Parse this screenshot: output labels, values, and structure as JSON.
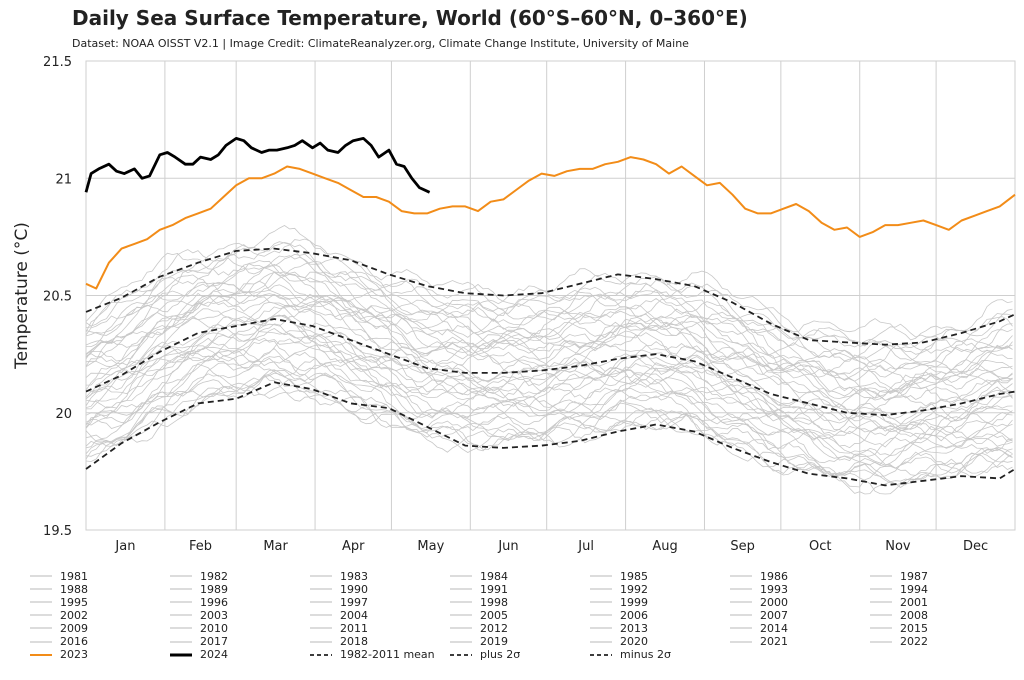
{
  "chart_data": {
    "type": "line",
    "title": "Daily Sea Surface Temperature, World (60°S–60°N, 0–360°E)",
    "subtitle": "Dataset: NOAA OISST V2.1 | Image Credit: ClimateReanalyzer.org, Climate Change Institute, University of Maine",
    "ylabel": "Temperature (°C)",
    "xlabel": "",
    "ylim": [
      19.5,
      21.5
    ],
    "yticks": [
      "21.5",
      "21",
      "20.5",
      "20",
      "19.5"
    ],
    "ytick_values": [
      21.5,
      21.0,
      20.5,
      20.0,
      19.5
    ],
    "xlim": [
      1,
      366
    ],
    "months": [
      "Jan",
      "Feb",
      "Mar",
      "Apr",
      "May",
      "Jun",
      "Jul",
      "Aug",
      "Sep",
      "Oct",
      "Nov",
      "Dec"
    ],
    "grid": true,
    "legend_position": "bottom",
    "colors": {
      "grey": "#c8c8c8",
      "y2023": "#f28c18",
      "y2024": "#000000",
      "stats": "#222222",
      "grid": "#cfcfcf"
    },
    "background_years": [
      "1981",
      "1982",
      "1983",
      "1984",
      "1985",
      "1986",
      "1987",
      "1988",
      "1989",
      "1990",
      "1991",
      "1992",
      "1993",
      "1994",
      "1995",
      "1996",
      "1997",
      "1998",
      "1999",
      "2000",
      "2001",
      "2002",
      "2003",
      "2004",
      "2005",
      "2006",
      "2007",
      "2008",
      "2009",
      "2010",
      "2011",
      "2012",
      "2013",
      "2014",
      "2015",
      "2016",
      "2017",
      "2018",
      "2019",
      "2020",
      "2021",
      "2022"
    ],
    "legend": [
      "1981",
      "1982",
      "1983",
      "1984",
      "1985",
      "1986",
      "1987",
      "1988",
      "1989",
      "1990",
      "1991",
      "1992",
      "1993",
      "1994",
      "1995",
      "1996",
      "1997",
      "1998",
      "1999",
      "2000",
      "2001",
      "2002",
      "2003",
      "2004",
      "2005",
      "2006",
      "2007",
      "2008",
      "2009",
      "2010",
      "2011",
      "2012",
      "2013",
      "2014",
      "2015",
      "2016",
      "2017",
      "2018",
      "2019",
      "2020",
      "2021",
      "2022",
      "2023",
      "2024",
      "1982-2011 mean",
      "plus 2σ",
      "minus 2σ"
    ],
    "series": [
      {
        "name": "1982-2011 mean",
        "style": "dashed",
        "x": [
          1,
          15,
          30,
          45,
          60,
          75,
          90,
          105,
          120,
          135,
          150,
          165,
          180,
          195,
          210,
          225,
          240,
          255,
          270,
          285,
          300,
          315,
          330,
          345,
          360,
          366
        ],
        "values": [
          20.09,
          20.16,
          20.26,
          20.34,
          20.37,
          20.4,
          20.37,
          20.31,
          20.25,
          20.19,
          20.17,
          20.17,
          20.18,
          20.2,
          20.23,
          20.25,
          20.22,
          20.15,
          20.08,
          20.04,
          20.0,
          19.99,
          20.01,
          20.04,
          20.08,
          20.09
        ]
      },
      {
        "name": "plus 2σ",
        "style": "dashed",
        "x": [
          1,
          15,
          30,
          45,
          60,
          75,
          90,
          105,
          120,
          135,
          150,
          165,
          180,
          195,
          210,
          225,
          240,
          255,
          270,
          285,
          300,
          315,
          330,
          345,
          360,
          366
        ],
        "values": [
          20.43,
          20.49,
          20.58,
          20.64,
          20.69,
          20.7,
          20.68,
          20.65,
          20.59,
          20.54,
          20.51,
          20.5,
          20.51,
          20.55,
          20.59,
          20.57,
          20.54,
          20.47,
          20.38,
          20.31,
          20.3,
          20.29,
          20.3,
          20.34,
          20.39,
          20.42
        ]
      },
      {
        "name": "minus 2σ",
        "style": "dashed",
        "x": [
          1,
          15,
          30,
          45,
          60,
          75,
          90,
          105,
          120,
          135,
          150,
          165,
          180,
          195,
          210,
          225,
          240,
          255,
          270,
          285,
          300,
          315,
          330,
          345,
          360,
          366
        ],
        "values": [
          19.76,
          19.87,
          19.96,
          20.04,
          20.06,
          20.13,
          20.1,
          20.04,
          20.02,
          19.94,
          19.86,
          19.85,
          19.86,
          19.88,
          19.92,
          19.95,
          19.92,
          19.85,
          19.79,
          19.74,
          19.72,
          19.69,
          19.71,
          19.73,
          19.72,
          19.76
        ]
      },
      {
        "name": "2023",
        "style": "solid",
        "x": [
          1,
          5,
          10,
          15,
          20,
          25,
          30,
          35,
          40,
          45,
          50,
          55,
          60,
          65,
          70,
          75,
          80,
          85,
          90,
          95,
          100,
          105,
          110,
          115,
          120,
          125,
          130,
          135,
          140,
          145,
          150,
          155,
          160,
          165,
          170,
          175,
          180,
          185,
          190,
          195,
          200,
          205,
          210,
          215,
          220,
          225,
          230,
          235,
          240,
          245,
          250,
          255,
          260,
          265,
          270,
          275,
          280,
          285,
          290,
          295,
          300,
          305,
          310,
          315,
          320,
          325,
          330,
          335,
          340,
          345,
          350,
          355,
          360,
          366
        ],
        "values": [
          20.55,
          20.53,
          20.64,
          20.7,
          20.72,
          20.74,
          20.78,
          20.8,
          20.83,
          20.85,
          20.87,
          20.92,
          20.97,
          21.0,
          21.0,
          21.02,
          21.05,
          21.04,
          21.02,
          21.0,
          20.98,
          20.95,
          20.92,
          20.92,
          20.9,
          20.86,
          20.85,
          20.85,
          20.87,
          20.88,
          20.88,
          20.86,
          20.9,
          20.91,
          20.95,
          20.99,
          21.02,
          21.01,
          21.03,
          21.04,
          21.04,
          21.06,
          21.07,
          21.09,
          21.08,
          21.06,
          21.02,
          21.05,
          21.01,
          20.97,
          20.98,
          20.93,
          20.87,
          20.85,
          20.85,
          20.87,
          20.89,
          20.86,
          20.81,
          20.78,
          20.79,
          20.75,
          20.77,
          20.8,
          20.8,
          20.81,
          20.82,
          20.8,
          20.78,
          20.82,
          20.84,
          20.86,
          20.88,
          20.93
        ]
      },
      {
        "name": "2024",
        "style": "solid",
        "x": [
          1,
          3,
          6,
          10,
          13,
          16,
          20,
          23,
          26,
          30,
          33,
          36,
          40,
          43,
          46,
          50,
          53,
          56,
          60,
          63,
          66,
          70,
          73,
          76,
          80,
          83,
          86,
          90,
          93,
          96,
          100,
          103,
          106,
          110,
          113,
          116,
          120,
          123,
          126,
          129,
          132,
          136
        ],
        "values": [
          20.94,
          21.02,
          21.04,
          21.06,
          21.03,
          21.02,
          21.04,
          21.0,
          21.01,
          21.1,
          21.11,
          21.09,
          21.06,
          21.06,
          21.09,
          21.08,
          21.1,
          21.14,
          21.17,
          21.16,
          21.13,
          21.11,
          21.12,
          21.12,
          21.13,
          21.14,
          21.16,
          21.13,
          21.15,
          21.12,
          21.11,
          21.14,
          21.16,
          21.17,
          21.14,
          21.09,
          21.12,
          21.06,
          21.05,
          21.0,
          20.96,
          20.94
        ]
      }
    ]
  }
}
